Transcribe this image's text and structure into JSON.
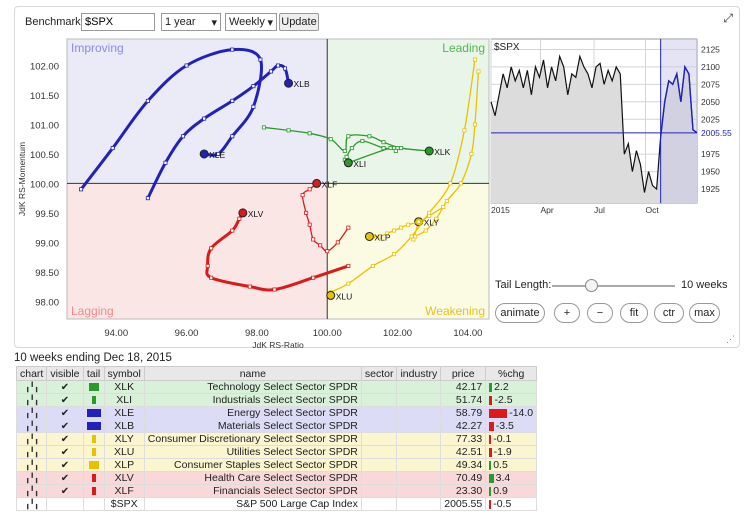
{
  "controls": {
    "benchmark_label": "Benchmark:",
    "benchmark_value": "$SPX",
    "period": "1 year",
    "frequency": "Weekly",
    "update_label": "Update",
    "tail_length_label": "Tail Length:",
    "tail_length_value": "10 weeks",
    "buttons": [
      "animate",
      "+",
      "−",
      "fit",
      "ctr",
      "max"
    ]
  },
  "chart_data": [
    {
      "type": "scatter",
      "subtype": "relative-rotation-graph",
      "xlabel": "JdK RS-Ratio",
      "ylabel": "JdK RS-Momentum",
      "xlim": [
        92.6,
        104.6
      ],
      "ylim": [
        97.7,
        102.45
      ],
      "xticks": [
        94.0,
        96.0,
        98.0,
        100.0,
        102.0,
        104.0
      ],
      "xtick_labels": [
        "94.00",
        "96.00",
        "98.00",
        "100.00",
        "102.00",
        "104.00"
      ],
      "yticks": [
        98.0,
        98.5,
        99.0,
        99.5,
        100.0,
        100.5,
        101.0,
        101.5,
        102.0
      ],
      "ytick_labels": [
        "98.00",
        "98.50",
        "99.00",
        "99.50",
        "100.00",
        "100.50",
        "101.00",
        "101.50",
        "102.00"
      ],
      "quadrants": {
        "improving": {
          "label": "Improving",
          "color": "#ebebf8",
          "text": "#8a8ae0"
        },
        "leading": {
          "label": "Leading",
          "color": "#e8f5e8",
          "text": "#53b653"
        },
        "lagging": {
          "label": "Lagging",
          "color": "#fbe6e6",
          "text": "#f08a8a"
        },
        "weakening": {
          "label": "Weakening",
          "color": "#fbfbe4",
          "text": "#e3c21d"
        }
      },
      "grid": false,
      "series": [
        {
          "name": "XLE",
          "color": "#2222bb",
          "points": [
            [
              93.0,
              99.9
            ],
            [
              93.9,
              100.6
            ],
            [
              94.9,
              101.4
            ],
            [
              96.0,
              102.0
            ],
            [
              97.3,
              102.27
            ],
            [
              98.1,
              102.1
            ],
            [
              97.9,
              101.3
            ],
            [
              97.3,
              100.8
            ],
            [
              96.9,
              100.5
            ],
            [
              96.5,
              100.5
            ]
          ]
        },
        {
          "name": "XLB",
          "color": "#2222bb",
          "points": [
            [
              94.9,
              99.75
            ],
            [
              95.4,
              100.35
            ],
            [
              95.9,
              100.8
            ],
            [
              96.5,
              101.1
            ],
            [
              97.3,
              101.4
            ],
            [
              97.9,
              101.65
            ],
            [
              98.4,
              101.9
            ],
            [
              98.6,
              102.0
            ],
            [
              98.8,
              101.95
            ],
            [
              98.9,
              101.7
            ]
          ]
        },
        {
          "name": "XLK",
          "color": "#2a9a2a",
          "points": [
            [
              98.2,
              100.95
            ],
            [
              98.9,
              100.9
            ],
            [
              99.5,
              100.85
            ],
            [
              100.1,
              100.75
            ],
            [
              100.5,
              100.55
            ],
            [
              100.6,
              100.8
            ],
            [
              101.2,
              100.8
            ],
            [
              101.6,
              100.7
            ],
            [
              102.1,
              100.6
            ],
            [
              102.9,
              100.55
            ]
          ]
        },
        {
          "name": "XLI",
          "color": "#2a9a2a",
          "points": [
            [
              100.5,
              100.4
            ],
            [
              100.55,
              100.45
            ],
            [
              100.7,
              100.6
            ],
            [
              101.0,
              100.72
            ],
            [
              101.6,
              100.6
            ],
            [
              101.9,
              100.6
            ],
            [
              102.0,
              100.6
            ],
            [
              101.95,
              100.55
            ],
            [
              101.8,
              100.6
            ],
            [
              100.6,
              100.35
            ]
          ]
        },
        {
          "name": "XLY",
          "color": "#e8c200",
          "points": [
            [
              104.3,
              101.9
            ],
            [
              104.2,
              101.0
            ],
            [
              104.1,
              100.5
            ],
            [
              103.8,
              100.0
            ],
            [
              103.4,
              99.7
            ],
            [
              103.1,
              99.4
            ],
            [
              102.8,
              99.2
            ],
            [
              102.5,
              99.1
            ],
            [
              102.45,
              99.05
            ],
            [
              102.6,
              99.35
            ]
          ]
        },
        {
          "name": "XLU",
          "color": "#e8c200",
          "points": [
            [
              104.2,
              102.1
            ],
            [
              103.9,
              100.9
            ],
            [
              103.5,
              100.0
            ],
            [
              102.9,
              99.5
            ],
            [
              102.4,
              99.1
            ],
            [
              101.9,
              98.8
            ],
            [
              101.3,
              98.6
            ],
            [
              100.6,
              98.3
            ],
            [
              100.1,
              98.15
            ],
            [
              100.1,
              98.1
            ]
          ]
        },
        {
          "name": "XLP",
          "color": "#e8c200",
          "points": [
            [
              103.3,
              99.6
            ],
            [
              102.9,
              99.45
            ],
            [
              102.6,
              99.35
            ],
            [
              102.3,
              99.3
            ],
            [
              102.1,
              99.25
            ],
            [
              101.9,
              99.2
            ],
            [
              101.7,
              99.15
            ],
            [
              101.5,
              99.1
            ],
            [
              101.3,
              99.1
            ],
            [
              101.2,
              99.1
            ]
          ]
        },
        {
          "name": "XLV",
          "color": "#dd1a1a",
          "points": [
            [
              100.6,
              98.6
            ],
            [
              99.6,
              98.4
            ],
            [
              98.5,
              98.2
            ],
            [
              97.8,
              98.25
            ],
            [
              96.7,
              98.4
            ],
            [
              96.6,
              98.6
            ],
            [
              96.7,
              98.9
            ],
            [
              97.3,
              99.2
            ],
            [
              97.5,
              99.4
            ],
            [
              97.6,
              99.5
            ]
          ]
        },
        {
          "name": "XLF",
          "color": "#dd1a1a",
          "points": [
            [
              100.6,
              99.25
            ],
            [
              100.3,
              99.0
            ],
            [
              100.0,
              98.85
            ],
            [
              99.8,
              98.95
            ],
            [
              99.6,
              99.05
            ],
            [
              99.5,
              99.3
            ],
            [
              99.4,
              99.5
            ],
            [
              99.3,
              99.8
            ],
            [
              99.5,
              99.9
            ],
            [
              99.7,
              100.0
            ]
          ]
        }
      ]
    },
    {
      "type": "line",
      "subtype": "price",
      "title": "$SPX",
      "x_labels": [
        "2015",
        "Apr",
        "Jul",
        "Oct"
      ],
      "yticks": [
        1925,
        1950,
        1975,
        2025,
        2050,
        2075,
        2100,
        2125
      ],
      "ytick_labels": [
        "1925",
        "1950",
        "1975",
        "2025",
        "2050",
        "2075",
        "2100",
        "2125"
      ],
      "ylim": [
        1905,
        2140
      ],
      "last_value": "2005.55",
      "values": [
        2050,
        2030,
        2060,
        2090,
        2070,
        2100,
        2080,
        2095,
        2070,
        2095,
        2060,
        2100,
        2085,
        2110,
        2070,
        2100,
        2080,
        2115,
        2100,
        2060,
        2090,
        2085,
        2115,
        2100,
        2090,
        2070,
        2100,
        2105,
        2075,
        2095,
        2080,
        2100,
        2090,
        1975,
        1990,
        1950,
        1980,
        1960,
        1920,
        1950,
        1930,
        1925,
        2000,
        2050,
        2080,
        2075,
        2090,
        2050,
        2100,
        2090,
        2010,
        2005.55
      ]
    }
  ],
  "table": {
    "title": "10 weeks ending Dec 18, 2015",
    "headers": [
      "chart",
      "visible",
      "tail",
      "symbol",
      "name",
      "sector",
      "industry",
      "price",
      "%chg"
    ],
    "rows": [
      {
        "symbol": "XLK",
        "name": "Technology Select Sector SPDR",
        "price": "42.17",
        "chg": "2.2",
        "color": "#2a9a2a",
        "bg": "#d9f0d9",
        "chg_color": "#2a9a2a",
        "chg_pct": 2.2
      },
      {
        "symbol": "XLI",
        "name": "Industrials Select Sector SPDR",
        "price": "51.74",
        "chg": "-2.5",
        "color": "#2a9a2a",
        "bg": "#d9f0d9",
        "chg_color": "#dd1a1a",
        "chg_pct": 2.5
      },
      {
        "symbol": "XLE",
        "name": "Energy Select Sector SPDR",
        "price": "58.79",
        "chg": "-14.0",
        "color": "#2222bb",
        "bg": "#dcdcf6",
        "chg_color": "#dd1a1a",
        "chg_pct": 14.0
      },
      {
        "symbol": "XLB",
        "name": "Materials Select Sector SPDR",
        "price": "42.27",
        "chg": "-3.5",
        "color": "#2222bb",
        "bg": "#dcdcf6",
        "chg_color": "#dd1a1a",
        "chg_pct": 3.5
      },
      {
        "symbol": "XLY",
        "name": "Consumer Discretionary Select Sector SPDR",
        "price": "77.33",
        "chg": "-0.1",
        "color": "#e8c200",
        "bg": "#fbf6d0",
        "chg_color": "#dd1a1a",
        "chg_pct": 0.1
      },
      {
        "symbol": "XLU",
        "name": "Utilities Select Sector SPDR",
        "price": "42.51",
        "chg": "-1.9",
        "color": "#e8c200",
        "bg": "#fbf6d0",
        "chg_color": "#dd1a1a",
        "chg_pct": 1.9
      },
      {
        "symbol": "XLP",
        "name": "Consumer Staples Select Sector SPDR",
        "price": "49.34",
        "chg": "0.5",
        "color": "#e8c200",
        "bg": "#fbf6d0",
        "chg_color": "#2a9a2a",
        "chg_pct": 0.5
      },
      {
        "symbol": "XLV",
        "name": "Health Care Select Sector SPDR",
        "price": "70.49",
        "chg": "3.4",
        "color": "#dd1a1a",
        "bg": "#f8d8d8",
        "chg_color": "#2a9a2a",
        "chg_pct": 3.4
      },
      {
        "symbol": "XLF",
        "name": "Financials Select Sector SPDR",
        "price": "23.30",
        "chg": "0.9",
        "color": "#dd1a1a",
        "bg": "#f8d8d8",
        "chg_color": "#2a9a2a",
        "chg_pct": 0.9
      },
      {
        "symbol": "$SPX",
        "name": "S&P 500 Large Cap Index",
        "price": "2005.55",
        "chg": "-0.5",
        "color": "",
        "bg": "#ffffff",
        "chg_color": "#dd1a1a",
        "chg_pct": 0.5
      }
    ]
  }
}
